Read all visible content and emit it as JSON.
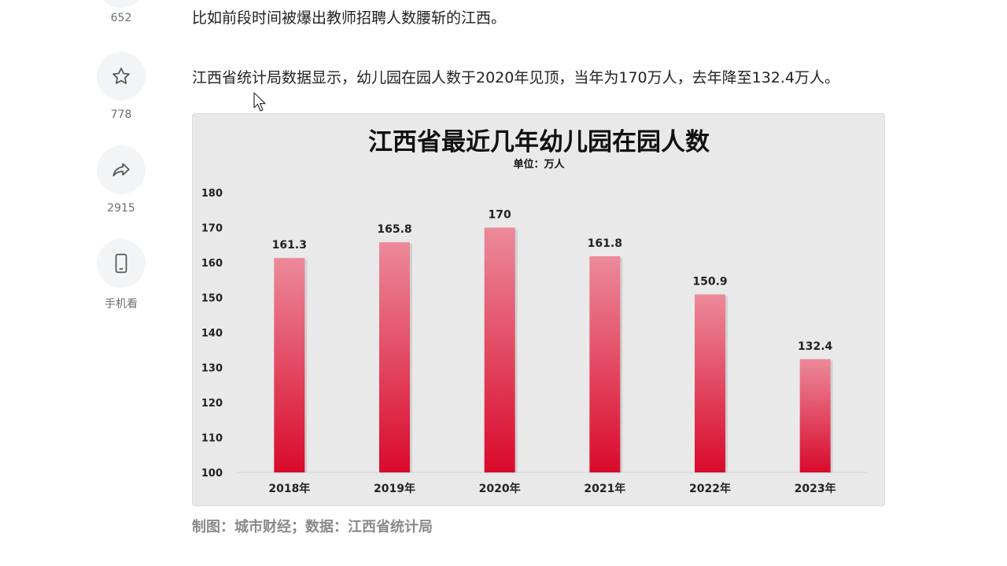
{
  "sidebar": {
    "actions": [
      {
        "name": "like",
        "icon": "thumb-up-icon",
        "count": "652"
      },
      {
        "name": "favorite",
        "icon": "star-icon",
        "count": "778"
      },
      {
        "name": "share",
        "icon": "share-icon",
        "count": "2915"
      },
      {
        "name": "mobile",
        "icon": "phone-icon",
        "count": "手机看"
      }
    ]
  },
  "article": {
    "paragraph_1": "比如前段时间被爆出教师招聘人数腰斩的江西。",
    "paragraph_2": "江西省统计局数据显示，幼儿园在园人数于2020年见顶，当年为170万人，去年降至132.4万人。",
    "chart_caption": "制图：城市财经；数据：江西省统计局"
  },
  "chart_data": {
    "type": "bar",
    "title": "江西省最近几年幼儿园在园人数",
    "subtitle": "单位：万人",
    "categories": [
      "2018年",
      "2019年",
      "2020年",
      "2021年",
      "2022年",
      "2023年"
    ],
    "values": [
      161.3,
      165.8,
      170,
      161.8,
      150.9,
      132.4
    ],
    "value_labels": [
      "161.3",
      "165.8",
      "170",
      "161.8",
      "150.9",
      "132.4"
    ],
    "ylim": [
      100,
      180
    ],
    "yticks": [
      100,
      110,
      120,
      130,
      140,
      150,
      160,
      170,
      180
    ],
    "grid": false,
    "colors": {
      "bar_top": "#ec8a9a",
      "bar_bottom": "#d90a2c",
      "background": "#e9e9e9"
    }
  }
}
